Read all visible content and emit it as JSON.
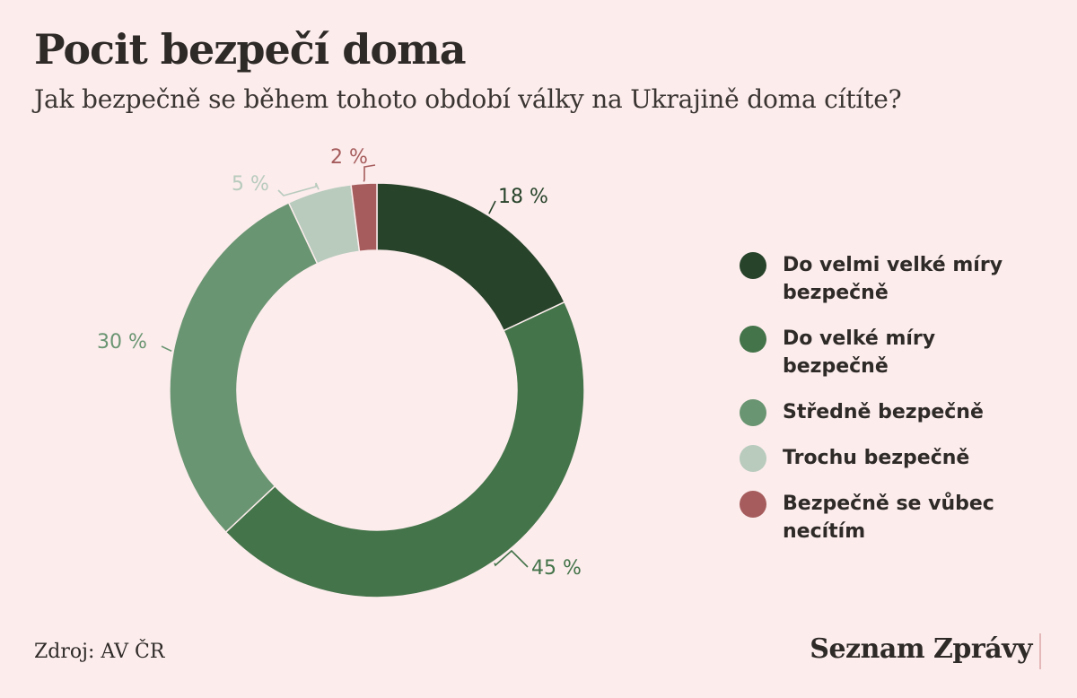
{
  "header": {
    "title": "Pocit bezpečí doma",
    "subtitle": "Jak bezpečně se během tohoto období války na Ukrajině doma cítíte?"
  },
  "chart_data": {
    "type": "pie",
    "donut": true,
    "legend_position": "right",
    "categories": [
      "Do velmi velké míry bezpečně",
      "Do velké míry bezpečně",
      "Středně bezpečně",
      "Trochu bezpečně",
      "Bezpečně se vůbec necítím"
    ],
    "values": [
      18,
      45,
      30,
      5,
      2
    ],
    "value_labels": [
      "18 %",
      "45 %",
      "30 %",
      "5 %",
      "2 %"
    ],
    "colors": [
      "#27432a",
      "#44744a",
      "#6a9572",
      "#b8cbbd",
      "#a65c5c"
    ],
    "label_colors": [
      "#27432a",
      "#44744a",
      "#6a9572",
      "#b8cbbd",
      "#a65c5c"
    ]
  },
  "footer": {
    "source": "Zdroj: AV ČR",
    "brand": "Seznam Zprávy"
  }
}
